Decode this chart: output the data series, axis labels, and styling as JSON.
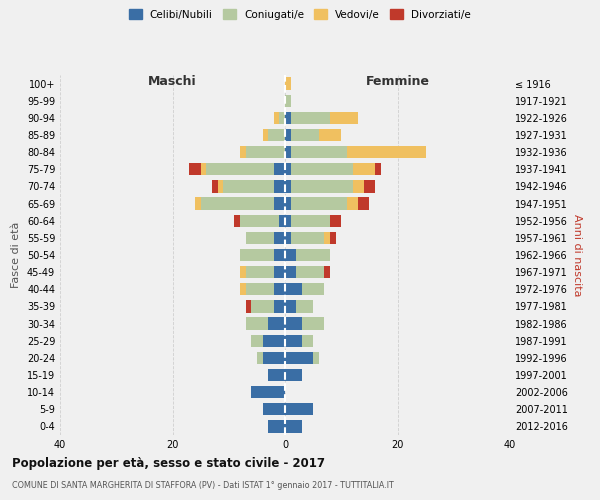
{
  "age_groups": [
    "100+",
    "95-99",
    "90-94",
    "85-89",
    "80-84",
    "75-79",
    "70-74",
    "65-69",
    "60-64",
    "55-59",
    "50-54",
    "45-49",
    "40-44",
    "35-39",
    "30-34",
    "25-29",
    "20-24",
    "15-19",
    "10-14",
    "5-9",
    "0-4"
  ],
  "birth_years": [
    "≤ 1916",
    "1917-1921",
    "1922-1926",
    "1927-1931",
    "1932-1936",
    "1937-1941",
    "1942-1946",
    "1947-1951",
    "1952-1956",
    "1957-1961",
    "1962-1966",
    "1967-1971",
    "1972-1976",
    "1977-1981",
    "1982-1986",
    "1987-1991",
    "1992-1996",
    "1997-2001",
    "2002-2006",
    "2007-2011",
    "2012-2016"
  ],
  "colors": {
    "celibi": "#3a6ea5",
    "coniugati": "#b5c9a0",
    "vedovi": "#f0c060",
    "divorziati": "#c0392b"
  },
  "males": {
    "celibi": [
      0,
      0,
      0,
      0,
      0,
      2,
      2,
      2,
      1,
      2,
      2,
      2,
      2,
      2,
      3,
      4,
      4,
      3,
      6,
      4,
      3
    ],
    "coniugati": [
      0,
      0,
      1,
      3,
      7,
      12,
      9,
      13,
      7,
      5,
      6,
      5,
      5,
      4,
      4,
      2,
      1,
      0,
      0,
      0,
      0
    ],
    "vedovi": [
      0,
      0,
      1,
      1,
      1,
      1,
      1,
      1,
      0,
      0,
      0,
      1,
      1,
      0,
      0,
      0,
      0,
      0,
      0,
      0,
      0
    ],
    "divorziati": [
      0,
      0,
      0,
      0,
      0,
      2,
      1,
      0,
      1,
      0,
      0,
      0,
      0,
      1,
      0,
      0,
      0,
      0,
      0,
      0,
      0
    ]
  },
  "females": {
    "celibi": [
      0,
      0,
      1,
      1,
      1,
      1,
      1,
      1,
      1,
      1,
      2,
      2,
      3,
      2,
      3,
      3,
      5,
      3,
      0,
      5,
      3
    ],
    "coniugati": [
      0,
      1,
      7,
      5,
      10,
      11,
      11,
      10,
      7,
      6,
      6,
      5,
      4,
      3,
      4,
      2,
      1,
      0,
      0,
      0,
      0
    ],
    "vedovi": [
      1,
      0,
      5,
      4,
      14,
      4,
      2,
      2,
      0,
      1,
      0,
      0,
      0,
      0,
      0,
      0,
      0,
      0,
      0,
      0,
      0
    ],
    "divorziati": [
      0,
      0,
      0,
      0,
      0,
      1,
      2,
      2,
      2,
      1,
      0,
      1,
      0,
      0,
      0,
      0,
      0,
      0,
      0,
      0,
      0
    ]
  },
  "title": "Popolazione per età, sesso e stato civile - 2017",
  "subtitle": "COMUNE DI SANTA MARGHERITA DI STAFFORA (PV) - Dati ISTAT 1° gennaio 2017 - TUTTITALIA.IT",
  "xlabel_left": "Maschi",
  "xlabel_right": "Femmine",
  "ylabel": "Fasce di età",
  "ylabel_right": "Anni di nascita",
  "xlim": 40,
  "legend_labels": [
    "Celibi/Nubili",
    "Coniugati/e",
    "Vedovi/e",
    "Divorziati/e"
  ],
  "background_color": "#f0f0f0"
}
